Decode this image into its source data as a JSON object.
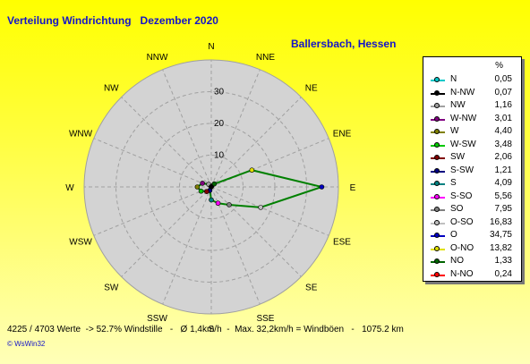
{
  "header": {
    "title": "Verteilung Windrichtung   Dezember 2020",
    "location": "Ballersbach, Hessen"
  },
  "chart_data": {
    "type": "radar",
    "directions": [
      "N",
      "NNE",
      "NE",
      "ENE",
      "E",
      "ESE",
      "SE",
      "SSE",
      "S",
      "SSW",
      "SW",
      "WSW",
      "W",
      "WNW",
      "NW",
      "NNW"
    ],
    "radial_ticks": [
      10,
      20,
      30
    ],
    "rmax": 40,
    "line_color": "#008000",
    "polar_bg": "#d3d3d3",
    "grid_color": "#a0a0a0",
    "values": [
      0.05,
      0.24,
      1.33,
      13.82,
      34.75,
      16.83,
      7.95,
      5.56,
      4.09,
      1.21,
      2.06,
      3.48,
      4.4,
      3.01,
      1.16,
      0.07
    ]
  },
  "legend": {
    "header": "%",
    "items": [
      {
        "name": "N",
        "value": "0,05",
        "color": "#00c8c8"
      },
      {
        "name": "N-NW",
        "value": "0,07",
        "color": "#000000"
      },
      {
        "name": "NW",
        "value": "1,16",
        "color": "#a0a0a0"
      },
      {
        "name": "W-NW",
        "value": "3,01",
        "color": "#800080"
      },
      {
        "name": "W",
        "value": "4,40",
        "color": "#808000"
      },
      {
        "name": "W-SW",
        "value": "3,48",
        "color": "#00c800"
      },
      {
        "name": "SW",
        "value": "2,06",
        "color": "#800000"
      },
      {
        "name": "S-SW",
        "value": "1,21",
        "color": "#000080"
      },
      {
        "name": "S",
        "value": "4,09",
        "color": "#008080"
      },
      {
        "name": "S-SO",
        "value": "5,56",
        "color": "#ff00ff"
      },
      {
        "name": "SO",
        "value": "7,95",
        "color": "#808080"
      },
      {
        "name": "O-SO",
        "value": "16,83",
        "color": "#c0c0c0"
      },
      {
        "name": "O",
        "value": "34,75",
        "color": "#0000c0"
      },
      {
        "name": "O-NO",
        "value": "13,82",
        "color": "#e0e000"
      },
      {
        "name": "NO",
        "value": "1,33",
        "color": "#006400"
      },
      {
        "name": "N-NO",
        "value": "0,24",
        "color": "#ff0000"
      }
    ]
  },
  "footer": {
    "stats": "4225 / 4703 Werte  -> 52.7% Windstille   -   Ø 1,4km/h  -  Max. 32,2km/h = Windböen   -   1075.2 km",
    "credit": "© WsWin32"
  }
}
